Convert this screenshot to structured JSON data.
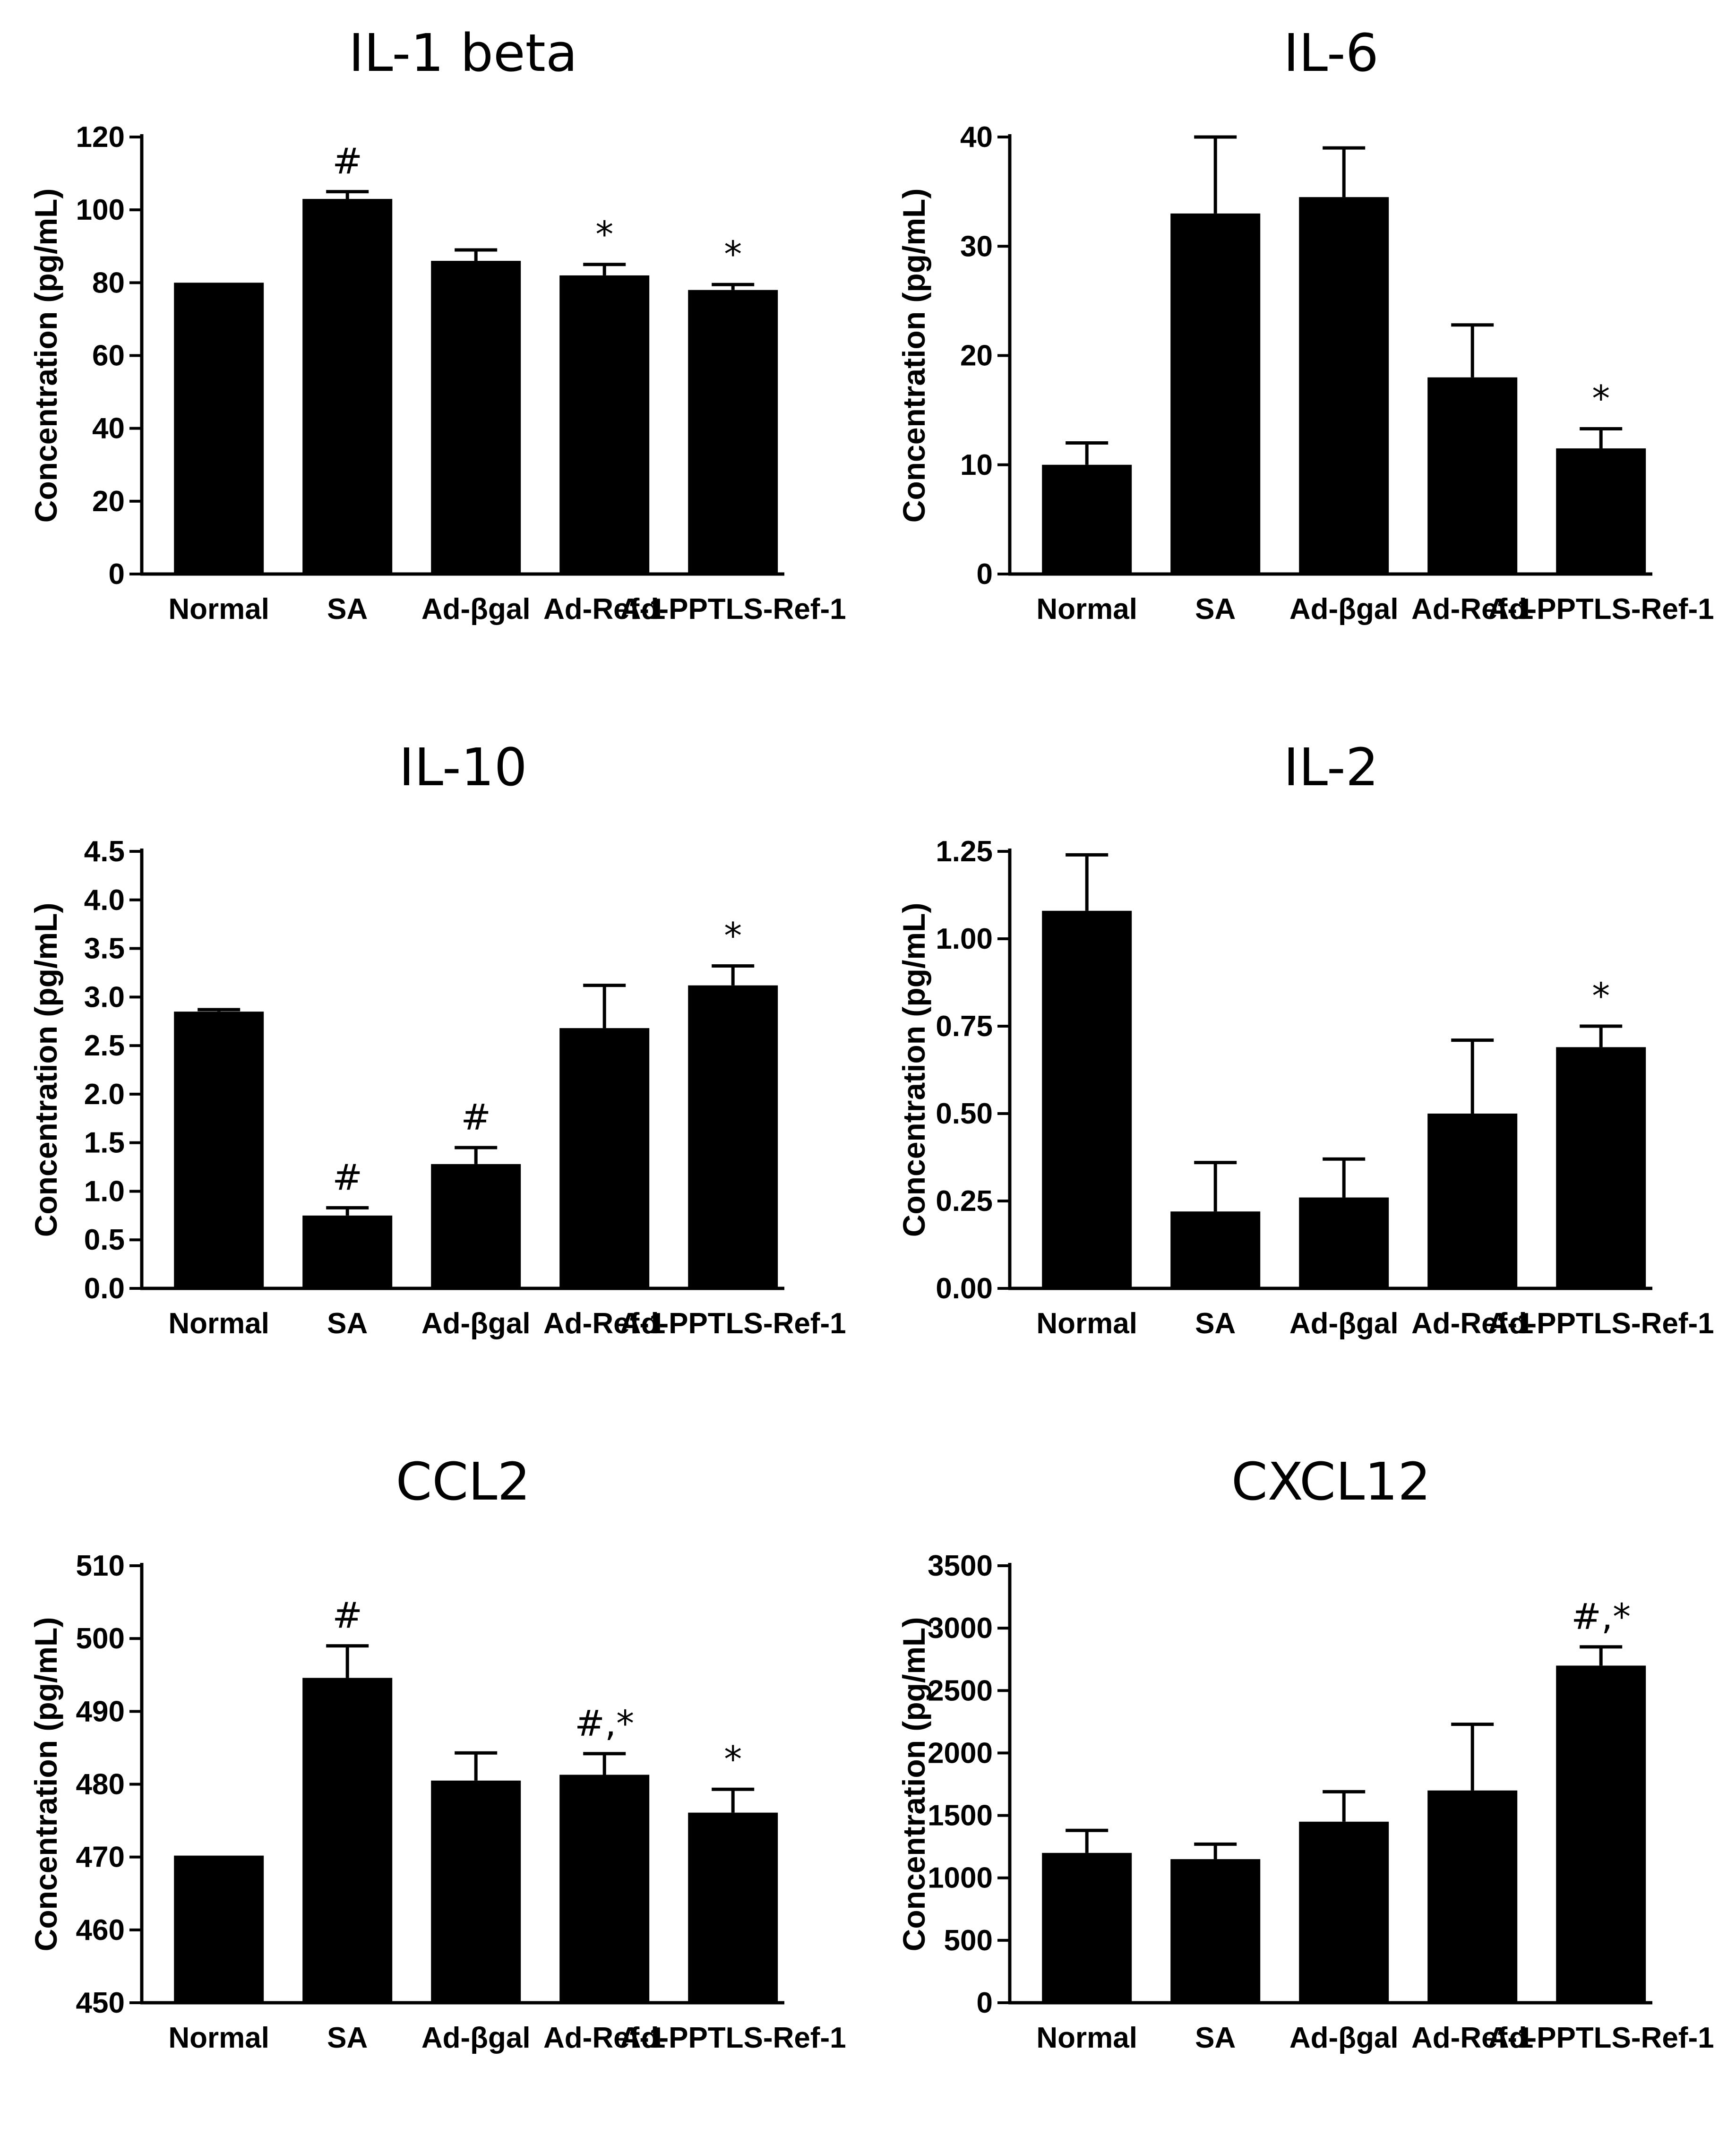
{
  "chart_data": [
    {
      "type": "bar",
      "title": "IL-1 beta",
      "ylabel": "Concentration (pg/mL)",
      "xlabel": "",
      "categories": [
        "Normal",
        "SA",
        "Ad-βgal",
        "Ad-Ref-1",
        "Ad-PPTLS-Ref-1"
      ],
      "values": [
        80,
        103,
        86,
        82,
        78
      ],
      "errors": [
        0,
        2,
        3,
        3,
        1.5
      ],
      "annotations": [
        "",
        "#",
        "",
        "*",
        "*"
      ],
      "ylim": [
        0,
        120
      ],
      "yticks": [
        "0",
        "20",
        "40",
        "60",
        "80",
        "100",
        "120"
      ],
      "grid": false
    },
    {
      "type": "bar",
      "title": "IL-6",
      "ylabel": "Concentration (pg/mL)",
      "xlabel": "",
      "categories": [
        "Normal",
        "SA",
        "Ad-βgal",
        "Ad-Ref-1",
        "Ad-PPTLS-Ref-1"
      ],
      "values": [
        10,
        33,
        34.5,
        18,
        11.5
      ],
      "errors": [
        2,
        7,
        4.5,
        4.8,
        1.8
      ],
      "annotations": [
        "",
        "",
        "",
        "",
        "*"
      ],
      "ylim": [
        0,
        40
      ],
      "yticks": [
        "0",
        "10",
        "20",
        "30",
        "40"
      ],
      "grid": false
    },
    {
      "type": "bar",
      "title": "IL-10",
      "ylabel": "Concentration (pg/mL)",
      "xlabel": "",
      "categories": [
        "Normal",
        "SA",
        "Ad-βgal",
        "Ad-Ref-1",
        "Ad-PPTLS-Ref-1"
      ],
      "values": [
        2.85,
        0.75,
        1.28,
        2.68,
        3.12
      ],
      "errors": [
        0.02,
        0.08,
        0.17,
        0.44,
        0.2
      ],
      "annotations": [
        "",
        "#",
        "#",
        "",
        "*"
      ],
      "ylim": [
        0,
        4.5
      ],
      "yticks": [
        "0.0",
        "0.5",
        "1.0",
        "1.5",
        "2.0",
        "2.5",
        "3.0",
        "3.5",
        "4.0",
        "4.5"
      ],
      "grid": false
    },
    {
      "type": "bar",
      "title": "IL-2",
      "ylabel": "Concentration (pg/mL)",
      "xlabel": "",
      "categories": [
        "Normal",
        "SA",
        "Ad-βgal",
        "Ad-Ref-1",
        "Ad-PPTLS-Ref-1"
      ],
      "values": [
        1.08,
        0.22,
        0.26,
        0.5,
        0.69
      ],
      "errors": [
        0.16,
        0.14,
        0.11,
        0.21,
        0.06
      ],
      "annotations": [
        "",
        "",
        "",
        "",
        "*"
      ],
      "ylim": [
        0,
        1.25
      ],
      "yticks": [
        "0.00",
        "0.25",
        "0.50",
        "0.75",
        "1.00",
        "1.25"
      ],
      "grid": false
    },
    {
      "type": "bar",
      "title": "CCL2",
      "ylabel": "Concentration (pg/mL)",
      "xlabel": "",
      "categories": [
        "Normal",
        "SA",
        "Ad-βgal",
        "Ad-Ref-1",
        "Ad-PPTLS-Ref-1"
      ],
      "values": [
        470.2,
        494.6,
        480.5,
        481.3,
        476.1
      ],
      "errors": [
        0,
        4.4,
        3.8,
        2.9,
        3.2
      ],
      "annotations": [
        "",
        "#",
        "",
        "#,*",
        "*"
      ],
      "ylim": [
        450,
        510
      ],
      "yticks": [
        "450",
        "460",
        "470",
        "480",
        "490",
        "500",
        "510"
      ],
      "grid": false
    },
    {
      "type": "bar",
      "title": "CXCL12",
      "ylabel": "Concentration (pg/mL)",
      "xlabel": "",
      "categories": [
        "Normal",
        "SA",
        "Ad-βgal",
        "Ad-Ref-1",
        "Ad-PPTLS-Ref-1"
      ],
      "values": [
        1200,
        1150,
        1450,
        1700,
        2700
      ],
      "errors": [
        180,
        120,
        240,
        530,
        150
      ],
      "annotations": [
        "",
        "",
        "",
        "",
        "#,*"
      ],
      "ylim": [
        0,
        3500
      ],
      "yticks": [
        "0",
        "500",
        "1000",
        "1500",
        "2000",
        "2500",
        "3000",
        "3500"
      ],
      "grid": false
    }
  ]
}
